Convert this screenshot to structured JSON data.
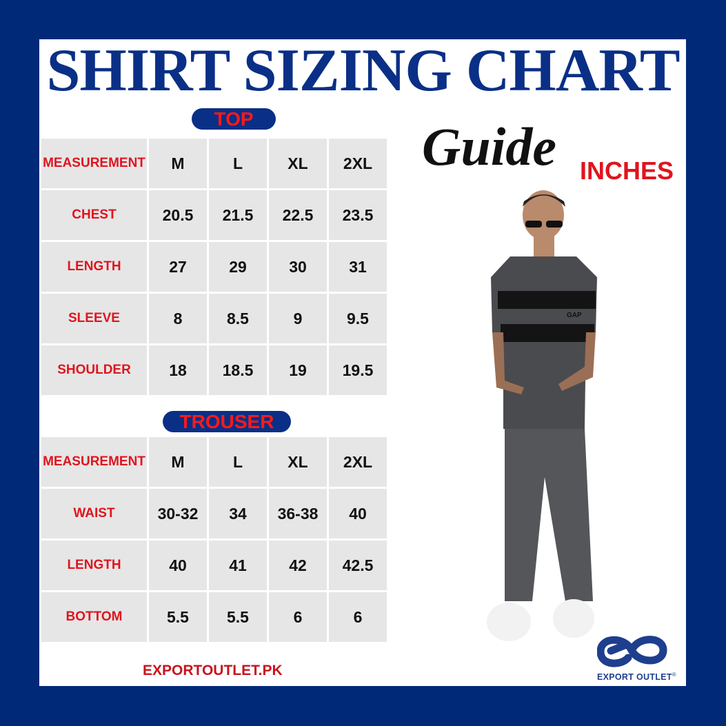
{
  "title": "SHIRT SIZING CHART",
  "subtitle_script": "Guide",
  "unit": "INCHES",
  "colors": {
    "frame": "#002a78",
    "title": "#0a2f86",
    "label_red": "#e0141e",
    "cell": "#e6e6e6"
  },
  "top": {
    "heading": "TOP",
    "header": [
      "MEASUREMENT",
      "M",
      "L",
      "XL",
      "2XL"
    ],
    "rows": [
      {
        "label": "CHEST",
        "values": [
          "20.5",
          "21.5",
          "22.5",
          "23.5"
        ]
      },
      {
        "label": "LENGTH",
        "values": [
          "27",
          "29",
          "30",
          "31"
        ]
      },
      {
        "label": "SLEEVE",
        "values": [
          "8",
          "8.5",
          "9",
          "9.5"
        ]
      },
      {
        "label": "SHOULDER",
        "values": [
          "18",
          "18.5",
          "19",
          "19.5"
        ]
      }
    ]
  },
  "trouser": {
    "heading": "TROUSER",
    "header": [
      "MEASUREMENT",
      "M",
      "L",
      "XL",
      "2XL"
    ],
    "rows": [
      {
        "label": "WAIST",
        "values": [
          "30-32",
          "34",
          "36-38",
          "40"
        ]
      },
      {
        "label": "LENGTH",
        "values": [
          "40",
          "41",
          "42",
          "42.5"
        ]
      },
      {
        "label": "BOTTOM",
        "values": [
          "5.5",
          "5.5",
          "6",
          "6"
        ]
      }
    ]
  },
  "footer": {
    "website": "EXPORTOUTLET.PK"
  },
  "brand": {
    "name": "EXPORT OUTLET",
    "registered": "®"
  },
  "model_image": {
    "shirt_logo": "GAP"
  }
}
